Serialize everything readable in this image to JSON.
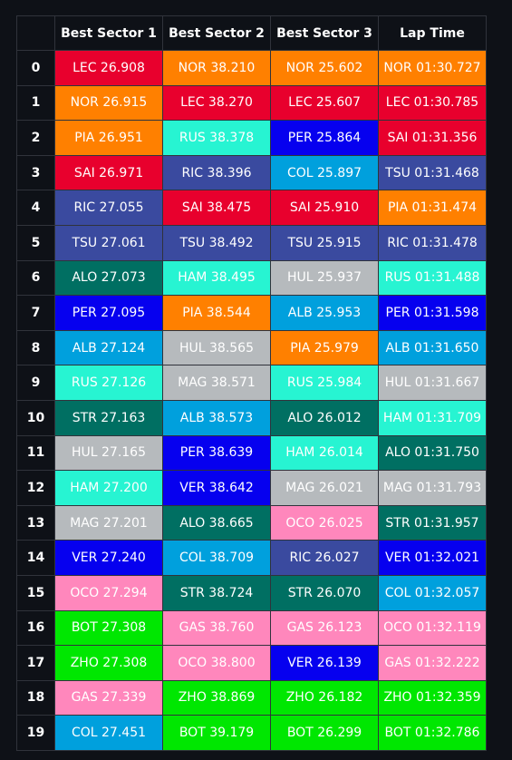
{
  "table": {
    "columns": [
      "",
      "Best Sector 1",
      "Best Sector 2",
      "Best Sector 3",
      "Lap Time"
    ],
    "team_colors": {
      "LEC": "#e8002d",
      "SAI": "#e8002d",
      "NOR": "#ff8000",
      "PIA": "#ff8000",
      "RUS": "#27f4d2",
      "HAM": "#27f4d2",
      "PER": "#0600ef",
      "VER": "#0600ef",
      "RIC": "#3a4a9f",
      "TSU": "#3a4a9f",
      "ALO": "#006f62",
      "STR": "#006f62",
      "ALB": "#00a0dd",
      "COL": "#00a0dd",
      "HUL": "#b6babd",
      "MAG": "#b6babd",
      "OCO": "#ff87bc",
      "GAS": "#ff87bc",
      "BOT": "#00e701",
      "ZHO": "#00e701"
    },
    "rows": [
      {
        "index": "0",
        "cells": [
          "LEC 26.908",
          "NOR 38.210",
          "NOR 25.602",
          "NOR 01:30.727"
        ]
      },
      {
        "index": "1",
        "cells": [
          "NOR 26.915",
          "LEC 38.270",
          "LEC 25.607",
          "LEC 01:30.785"
        ]
      },
      {
        "index": "2",
        "cells": [
          "PIA 26.951",
          "RUS 38.378",
          "PER 25.864",
          "SAI 01:31.356"
        ]
      },
      {
        "index": "3",
        "cells": [
          "SAI 26.971",
          "RIC 38.396",
          "COL 25.897",
          "TSU 01:31.468"
        ]
      },
      {
        "index": "4",
        "cells": [
          "RIC 27.055",
          "SAI 38.475",
          "SAI 25.910",
          "PIA 01:31.474"
        ]
      },
      {
        "index": "5",
        "cells": [
          "TSU 27.061",
          "TSU 38.492",
          "TSU 25.915",
          "RIC 01:31.478"
        ]
      },
      {
        "index": "6",
        "cells": [
          "ALO 27.073",
          "HAM 38.495",
          "HUL 25.937",
          "RUS 01:31.488"
        ]
      },
      {
        "index": "7",
        "cells": [
          "PER 27.095",
          "PIA 38.544",
          "ALB 25.953",
          "PER 01:31.598"
        ]
      },
      {
        "index": "8",
        "cells": [
          "ALB 27.124",
          "HUL 38.565",
          "PIA 25.979",
          "ALB 01:31.650"
        ]
      },
      {
        "index": "9",
        "cells": [
          "RUS 27.126",
          "MAG 38.571",
          "RUS 25.984",
          "HUL 01:31.667"
        ]
      },
      {
        "index": "10",
        "cells": [
          "STR 27.163",
          "ALB 38.573",
          "ALO 26.012",
          "HAM 01:31.709"
        ]
      },
      {
        "index": "11",
        "cells": [
          "HUL 27.165",
          "PER 38.639",
          "HAM 26.014",
          "ALO 01:31.750"
        ]
      },
      {
        "index": "12",
        "cells": [
          "HAM 27.200",
          "VER 38.642",
          "MAG 26.021",
          "MAG 01:31.793"
        ]
      },
      {
        "index": "13",
        "cells": [
          "MAG 27.201",
          "ALO 38.665",
          "OCO 26.025",
          "STR 01:31.957"
        ]
      },
      {
        "index": "14",
        "cells": [
          "VER 27.240",
          "COL 38.709",
          "RIC 26.027",
          "VER 01:32.021"
        ]
      },
      {
        "index": "15",
        "cells": [
          "OCO 27.294",
          "STR 38.724",
          "STR 26.070",
          "COL 01:32.057"
        ]
      },
      {
        "index": "16",
        "cells": [
          "BOT 27.308",
          "GAS 38.760",
          "GAS 26.123",
          "OCO 01:32.119"
        ]
      },
      {
        "index": "17",
        "cells": [
          "ZHO 27.308",
          "OCO 38.800",
          "VER 26.139",
          "GAS 01:32.222"
        ]
      },
      {
        "index": "18",
        "cells": [
          "GAS 27.339",
          "ZHO 38.869",
          "ZHO 26.182",
          "ZHO 01:32.359"
        ]
      },
      {
        "index": "19",
        "cells": [
          "COL 27.451",
          "BOT 39.179",
          "BOT 26.299",
          "BOT 01:32.786"
        ]
      }
    ]
  }
}
